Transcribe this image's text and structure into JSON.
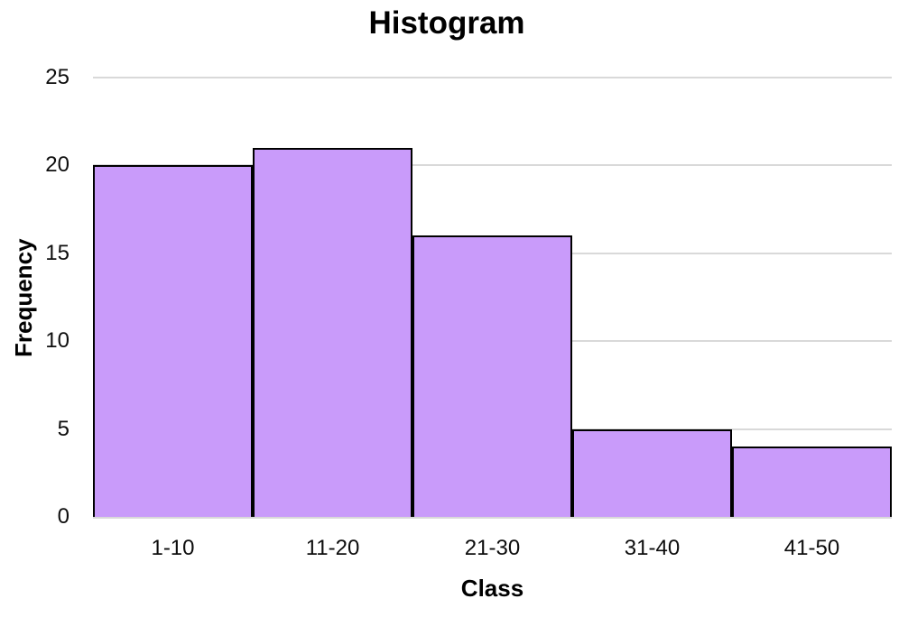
{
  "chart_data": {
    "type": "bar",
    "title": "Histogram",
    "xlabel": "Class",
    "ylabel": "Frequency",
    "categories": [
      "1-10",
      "11-20",
      "21-30",
      "31-40",
      "41-50"
    ],
    "values": [
      20,
      21,
      16,
      5,
      4
    ],
    "ylim": [
      0,
      25
    ],
    "yticks": [
      0,
      5,
      10,
      15,
      20,
      25
    ],
    "grid": true,
    "legend": "none",
    "bar_fill_color": "#C99BFA",
    "bar_border_color": "#000000",
    "gridline_color": "#D9D9D9",
    "axis_line_color": "#D9D9D9",
    "text_color": "#000000"
  }
}
